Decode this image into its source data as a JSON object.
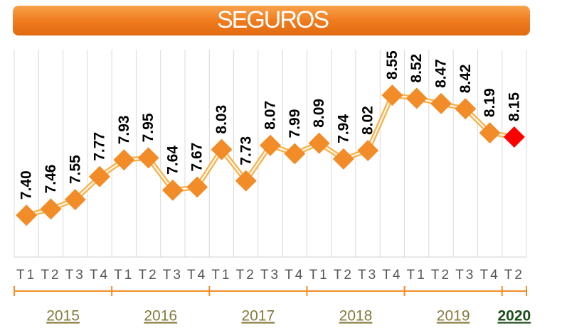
{
  "chart_data": {
    "type": "line",
    "title": "SEGUROS",
    "categories": [
      "T1",
      "T2",
      "T3",
      "T4",
      "T1",
      "T2",
      "T3",
      "T4",
      "T1",
      "T2",
      "T3",
      "T4",
      "T1",
      "T2",
      "T3",
      "T4",
      "T1",
      "T2",
      "T3",
      "T4",
      "T2"
    ],
    "values": [
      7.4,
      7.46,
      7.55,
      7.77,
      7.93,
      7.95,
      7.64,
      7.67,
      8.03,
      7.73,
      8.07,
      7.99,
      8.09,
      7.94,
      8.02,
      8.55,
      8.52,
      8.47,
      8.42,
      8.19,
      8.15
    ],
    "value_labels": [
      "7.40",
      "7.46",
      "7.55",
      "7.77",
      "7.93",
      "7.95",
      "7.64",
      "7.67",
      "8.03",
      "7.73",
      "8.07",
      "7.99",
      "8.09",
      "7.94",
      "8.02",
      "8.55",
      "8.52",
      "8.47",
      "8.42",
      "8.19",
      "8.15"
    ],
    "line_color": "#f7b552",
    "marker_color": "#f28c28",
    "groups": [
      {
        "label": "2015",
        "count": 4,
        "label_color": "#857a3c"
      },
      {
        "label": "2016",
        "count": 4,
        "label_color": "#857a3c"
      },
      {
        "label": "2017",
        "count": 4,
        "label_color": "#857a3c"
      },
      {
        "label": "2018",
        "count": 4,
        "label_color": "#857a3c"
      },
      {
        "label": "2019",
        "count": 4,
        "label_color": "#857a3c"
      },
      {
        "label": "2020",
        "count": 1,
        "label_color": "#1a4d1a",
        "bold": true,
        "marker_color": "#ff0000"
      }
    ],
    "ylim": [
      7.0,
      9.0
    ],
    "grid": true
  }
}
